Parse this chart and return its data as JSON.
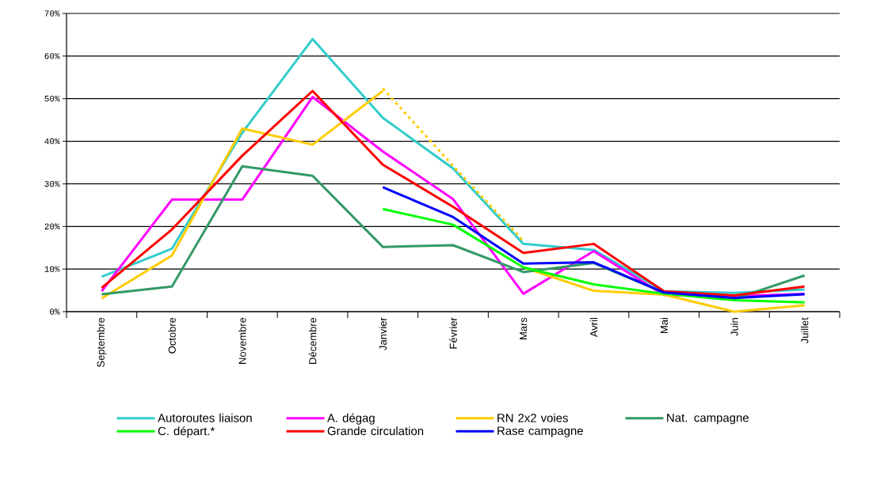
{
  "chart_data": {
    "type": "line",
    "categories": [
      "Septembre",
      "Octobre",
      "Novembre",
      "Décembre",
      "Janvier",
      "Février",
      "Mars",
      "Avril",
      "Mai",
      "Juin",
      "Juillet"
    ],
    "series": [
      {
        "name": "Autoroutes liaison",
        "color": "#33cccc",
        "values": [
          8.2,
          14.8,
          42,
          64.0,
          45.5,
          33.6,
          15.9,
          14.5,
          4.8,
          4.4,
          5.2
        ]
      },
      {
        "name": "A. dégag",
        "color": "#ff00ff",
        "values": [
          4.8,
          26.3,
          26.3,
          50.4,
          37.6,
          26.4,
          4.2,
          14.2,
          3.9,
          3.6,
          4.2
        ]
      },
      {
        "name": "RN 2x2 voies",
        "color": "#ffcc00",
        "values": [
          3.1,
          13.2,
          43.0,
          39.2,
          51.8,
          null,
          10.4,
          4.9,
          4.0,
          0.0,
          1.5
        ]
      },
      {
        "name": "Nat. campagne",
        "color": "#339966",
        "values": [
          4.1,
          5.9,
          34.1,
          31.9,
          15.2,
          15.6,
          9.3,
          11.4,
          4.5,
          3.0,
          8.5
        ]
      },
      {
        "name": "C. départ.*",
        "color": "#00ff00",
        "values": [
          null,
          null,
          null,
          null,
          24.1,
          20.4,
          10.4,
          6.4,
          4.2,
          2.7,
          2.2
        ]
      },
      {
        "name": "Grande circulation",
        "color": "#ff0000",
        "values": [
          5.6,
          19.3,
          36.6,
          51.8,
          34.5,
          24.6,
          13.8,
          15.9,
          4.8,
          3.8,
          5.9
        ]
      },
      {
        "name": "Rase campagne",
        "color": "#0000ff",
        "values": [
          null,
          null,
          null,
          null,
          29.2,
          22.2,
          11.3,
          11.6,
          4.5,
          3.2,
          4.1
        ]
      },
      {
        "color": "#ffcc00",
        "line_style": "dotted",
        "values": [
          null,
          null,
          null,
          null,
          52.4,
          34.2,
          16.6,
          null,
          null,
          null,
          null
        ]
      }
    ],
    "ylim": [
      0,
      70
    ],
    "yticks": [
      {
        "value": 0,
        "label": "0%"
      },
      {
        "value": 10,
        "label": "10%"
      },
      {
        "value": 20,
        "label": "20%"
      },
      {
        "value": 30,
        "label": "30%"
      },
      {
        "value": 40,
        "label": "40%"
      },
      {
        "value": 50,
        "label": "50%"
      },
      {
        "value": 60,
        "label": "60%"
      },
      {
        "value": 70,
        "label": "70%"
      }
    ],
    "grid": "y",
    "legend": "bottom",
    "line_style": "solid"
  }
}
